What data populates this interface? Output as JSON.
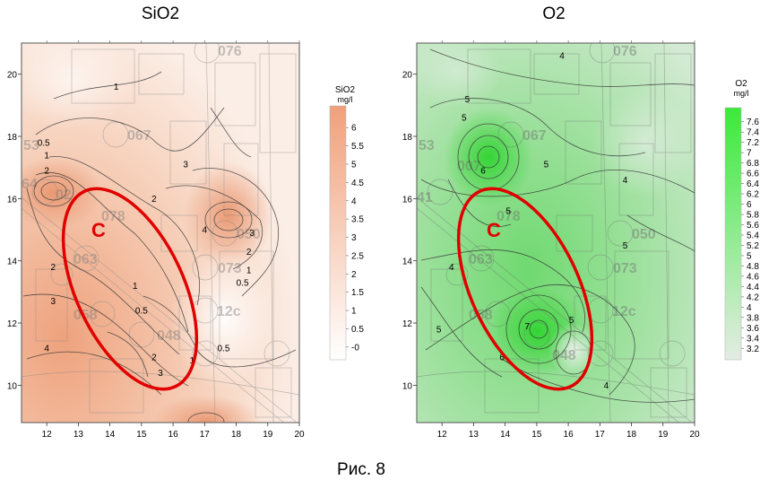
{
  "figure": {
    "caption": "Рис. 8"
  },
  "chart_data": [
    {
      "type": "heatmap",
      "title": "SiO2",
      "colorbar": {
        "title": "SiO2",
        "unit": "mg/l",
        "ticks": [
          "6",
          "5.5",
          "5",
          "4.5",
          "4",
          "3.5",
          "3",
          "2.5",
          "2",
          "1.5",
          "1",
          "0.5",
          "-0"
        ],
        "range": [
          -0.2,
          6.3
        ],
        "color_low": "#ffffff",
        "color_high": "#f0a07a"
      },
      "xlim": [
        11.2,
        20
      ],
      "ylim": [
        8.8,
        21
      ],
      "xticks": [
        "12",
        "13",
        "14",
        "15",
        "16",
        "17",
        "18",
        "19",
        "20"
      ],
      "yticks": [
        "10",
        "12",
        "14",
        "16",
        "18",
        "20"
      ],
      "contour_labels": [
        {
          "x": 11.9,
          "y": 17.7,
          "text": "0.5"
        },
        {
          "x": 12.0,
          "y": 17.3,
          "text": "1"
        },
        {
          "x": 12.0,
          "y": 16.8,
          "text": "2"
        },
        {
          "x": 14.2,
          "y": 19.5,
          "text": "1"
        },
        {
          "x": 16.4,
          "y": 17.0,
          "text": "3"
        },
        {
          "x": 15.4,
          "y": 15.9,
          "text": "2"
        },
        {
          "x": 17.0,
          "y": 14.9,
          "text": "4"
        },
        {
          "x": 18.5,
          "y": 14.8,
          "text": "3"
        },
        {
          "x": 18.4,
          "y": 14.2,
          "text": "2"
        },
        {
          "x": 18.4,
          "y": 13.6,
          "text": "1"
        },
        {
          "x": 18.2,
          "y": 13.2,
          "text": "0.5"
        },
        {
          "x": 12.2,
          "y": 13.7,
          "text": "2"
        },
        {
          "x": 12.2,
          "y": 12.6,
          "text": "3"
        },
        {
          "x": 14.8,
          "y": 13.1,
          "text": "1"
        },
        {
          "x": 15.0,
          "y": 12.3,
          "text": "0.5"
        },
        {
          "x": 12.0,
          "y": 11.1,
          "text": "4"
        },
        {
          "x": 15.4,
          "y": 10.8,
          "text": "2"
        },
        {
          "x": 15.6,
          "y": 10.3,
          "text": "3"
        },
        {
          "x": 17.6,
          "y": 11.1,
          "text": "0.5"
        },
        {
          "x": 16.6,
          "y": 10.7,
          "text": "1"
        }
      ],
      "region_marker": {
        "label": "C",
        "center_x": 14.6,
        "center_y": 13.2,
        "color": "#e00000"
      }
    },
    {
      "type": "heatmap",
      "title": "O2",
      "colorbar": {
        "title": "O2",
        "unit": "mg/l",
        "ticks": [
          "7.6",
          "7.4",
          "7.2",
          "7",
          "6.8",
          "6.6",
          "6.4",
          "6.2",
          "6",
          "5.8",
          "5.6",
          "5.4",
          "5.2",
          "5",
          "4.8",
          "4.6",
          "4.4",
          "4.2",
          "4",
          "3.8",
          "3.6",
          "3.4",
          "3.2"
        ],
        "range": [
          3.1,
          7.7
        ],
        "color_low": "#e4ece4",
        "color_high": "#3aea3a"
      },
      "xlim": [
        11.2,
        20
      ],
      "ylim": [
        8.8,
        21
      ],
      "xticks": [
        "12",
        "13",
        "14",
        "15",
        "16",
        "17",
        "18",
        "19",
        "20"
      ],
      "yticks": [
        "10",
        "12",
        "14",
        "16",
        "18",
        "20"
      ],
      "contour_labels": [
        {
          "x": 15.8,
          "y": 20.5,
          "text": "4"
        },
        {
          "x": 12.8,
          "y": 19.1,
          "text": "5"
        },
        {
          "x": 12.7,
          "y": 18.5,
          "text": "5"
        },
        {
          "x": 13.3,
          "y": 16.8,
          "text": "6"
        },
        {
          "x": 15.3,
          "y": 17.0,
          "text": "5"
        },
        {
          "x": 17.8,
          "y": 16.5,
          "text": "4"
        },
        {
          "x": 14.1,
          "y": 15.5,
          "text": "5"
        },
        {
          "x": 17.8,
          "y": 14.4,
          "text": "5"
        },
        {
          "x": 12.3,
          "y": 13.7,
          "text": "4"
        },
        {
          "x": 11.9,
          "y": 11.7,
          "text": "5"
        },
        {
          "x": 14.7,
          "y": 11.8,
          "text": "7"
        },
        {
          "x": 16.1,
          "y": 12.0,
          "text": "5"
        },
        {
          "x": 13.9,
          "y": 10.8,
          "text": "6"
        },
        {
          "x": 17.2,
          "y": 9.9,
          "text": "4"
        }
      ],
      "region_marker": {
        "label": "C",
        "center_x": 14.6,
        "center_y": 13.2,
        "color": "#e00000"
      }
    }
  ]
}
